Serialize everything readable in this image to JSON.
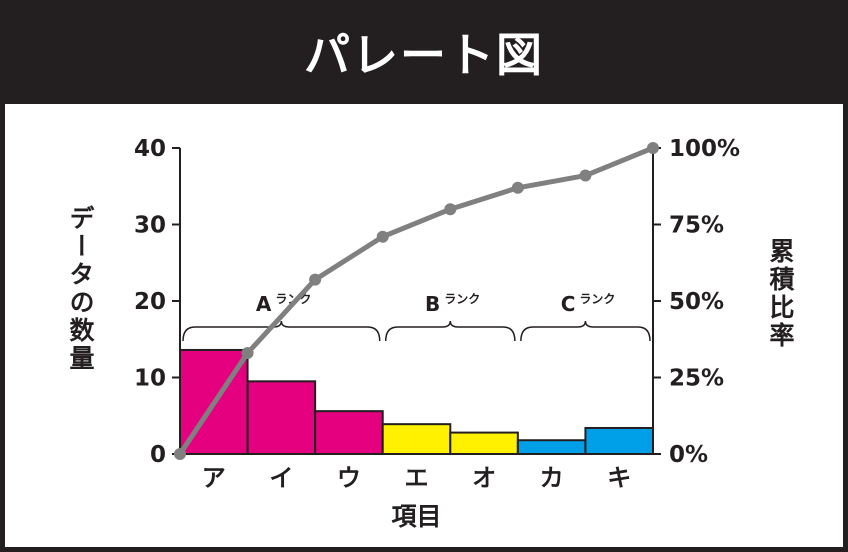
{
  "title": "パレート図",
  "chart_data": {
    "type": "bar",
    "categories": [
      "ア",
      "イ",
      "ウ",
      "エ",
      "オ",
      "カ",
      "キ"
    ],
    "values": [
      13.6,
      9.5,
      5.6,
      3.9,
      2.8,
      1.8,
      3.4
    ],
    "bar_colors": [
      "#e4007f",
      "#e4007f",
      "#e4007f",
      "#fff100",
      "#fff100",
      "#00a0e9",
      "#00a0e9"
    ],
    "cumulative_percent": [
      0,
      33,
      57,
      71,
      80,
      87,
      91,
      100
    ],
    "line_color": "#808080",
    "xlabel": "項目",
    "ylabel": "データの数量",
    "y2label": "累積比率",
    "ylim": [
      0,
      40
    ],
    "yticks": [
      "0",
      "10",
      "20",
      "30",
      "40"
    ],
    "y2ticks": [
      "0%",
      "25%",
      "50%",
      "75%",
      "100%"
    ],
    "ranks": [
      {
        "letter": "A",
        "suffix": "ランク",
        "from": 0,
        "to": 3
      },
      {
        "letter": "B",
        "suffix": "ランク",
        "from": 3,
        "to": 5
      },
      {
        "letter": "C",
        "suffix": "ランク",
        "from": 5,
        "to": 7
      }
    ]
  }
}
